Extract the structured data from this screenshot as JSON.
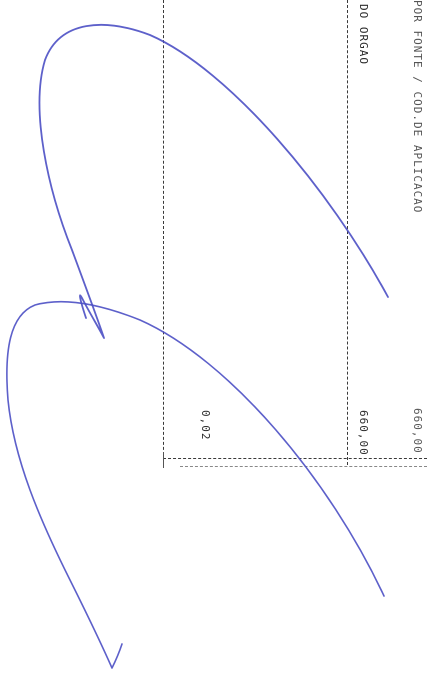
{
  "document": {
    "header_fragment": "POR FONTE / COD.DE APLICACAO",
    "column_label": "DO ORGAO",
    "value_top": "660,00",
    "value_right": "660,00",
    "value_bottom": "0,02"
  },
  "signature": {
    "ink_color": "#4b4fc4"
  }
}
